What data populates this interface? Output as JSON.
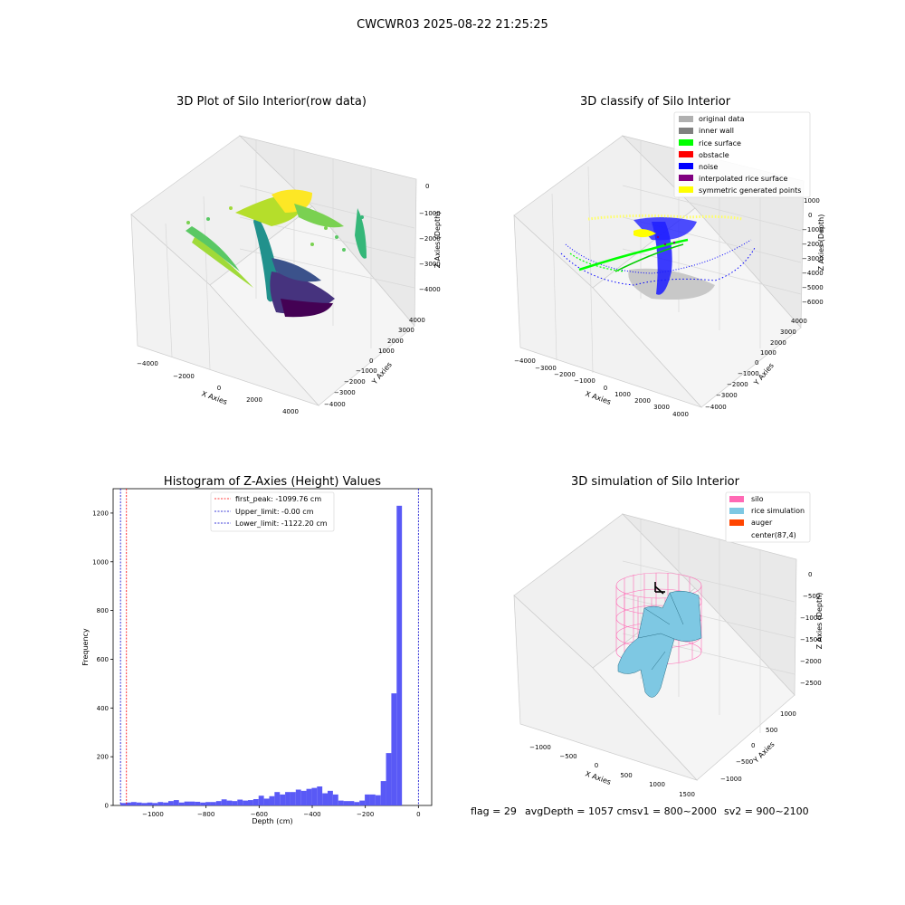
{
  "suptitle": "CWCWR03 2025-08-22 21:25:25",
  "footer": {
    "flag": "flag = 29",
    "avg": "avgDepth = 1057 cmsv1 = 800~2000",
    "sv2": "sv2 = 900~2100"
  },
  "colors": {
    "histogram_bar": "#5050f5",
    "first_peak": "#ff0000",
    "limits": "#0000cc",
    "original_data": "#b0b0b0",
    "inner_wall": "#808080",
    "rice_surface": "#00ff00",
    "obstacle": "#ff0000",
    "noise": "#0000ff",
    "interpolated": "#800080",
    "symmetric": "#ffff00",
    "silo": "#ff69b4",
    "rice_simulation": "#7ec8e3",
    "auger": "#ff4500"
  },
  "chart_data": [
    {
      "type": "scatter3d",
      "title": "3D Plot of Silo Interior(row data)",
      "xlabel": "X Axies",
      "ylabel": "Y Axies",
      "zlabel": "Z Axies (Depth)",
      "xticks": [
        "−4000",
        "−2000",
        "0",
        "2000",
        "4000"
      ],
      "yticks": [
        "4000",
        "3000",
        "2000",
        "1000",
        "0",
        "−1000",
        "−2000",
        "−3000",
        "−4000"
      ],
      "zticks": [
        "0",
        "−1000",
        "−2000",
        "−3000",
        "−4000"
      ],
      "colormap": "viridis"
    },
    {
      "type": "scatter3d",
      "title": "3D classify of Silo Interior",
      "xlabel": "X Axies",
      "ylabel": "Y Axies",
      "zlabel": "Z Axies (Depth)",
      "xticks": [
        "−4000",
        "−3000",
        "−2000",
        "−1000",
        "0",
        "1000",
        "2000",
        "3000",
        "4000"
      ],
      "yticks": [
        "4000",
        "3000",
        "2000",
        "1000",
        "0",
        "−1000",
        "−2000",
        "−3000",
        "−4000"
      ],
      "zticks": [
        "2000",
        "1000",
        "0",
        "−1000",
        "−2000",
        "−3000",
        "−4000",
        "−5000",
        "−6000"
      ],
      "legend": [
        {
          "label": "original data",
          "color": "#b0b0b0"
        },
        {
          "label": "inner wall",
          "color": "#808080"
        },
        {
          "label": "rice surface",
          "color": "#00ff00"
        },
        {
          "label": "obstacle",
          "color": "#ff0000"
        },
        {
          "label": "noise",
          "color": "#0000ff"
        },
        {
          "label": "interpolated rice surface",
          "color": "#800080"
        },
        {
          "label": "symmetric generated points",
          "color": "#ffff00"
        }
      ]
    },
    {
      "type": "histogram",
      "title": "Histogram of Z-Axies (Height) Values",
      "xlabel": "Depth (cm)",
      "ylabel": "Frequency",
      "xlim": [
        -1150,
        50
      ],
      "ylim": [
        0,
        1300
      ],
      "xticks": [
        -1000,
        -800,
        -600,
        -400,
        -200,
        0
      ],
      "xtick_labels": [
        "−1000",
        "−800",
        "−600",
        "−400",
        "−200",
        "0"
      ],
      "yticks": [
        0,
        200,
        400,
        600,
        800,
        1000,
        1200
      ],
      "bin_width": 20,
      "bins": [
        {
          "x0": -1122,
          "y": 10
        },
        {
          "x0": -1102,
          "y": 12
        },
        {
          "x0": -1082,
          "y": 14
        },
        {
          "x0": -1062,
          "y": 12
        },
        {
          "x0": -1042,
          "y": 10
        },
        {
          "x0": -1022,
          "y": 12
        },
        {
          "x0": -1002,
          "y": 10
        },
        {
          "x0": -982,
          "y": 14
        },
        {
          "x0": -962,
          "y": 12
        },
        {
          "x0": -942,
          "y": 18
        },
        {
          "x0": -922,
          "y": 22
        },
        {
          "x0": -902,
          "y": 12
        },
        {
          "x0": -882,
          "y": 16
        },
        {
          "x0": -862,
          "y": 16
        },
        {
          "x0": -842,
          "y": 15
        },
        {
          "x0": -822,
          "y": 12
        },
        {
          "x0": -802,
          "y": 14
        },
        {
          "x0": -782,
          "y": 14
        },
        {
          "x0": -762,
          "y": 18
        },
        {
          "x0": -742,
          "y": 25
        },
        {
          "x0": -722,
          "y": 20
        },
        {
          "x0": -702,
          "y": 18
        },
        {
          "x0": -682,
          "y": 24
        },
        {
          "x0": -662,
          "y": 20
        },
        {
          "x0": -642,
          "y": 22
        },
        {
          "x0": -622,
          "y": 26
        },
        {
          "x0": -602,
          "y": 40
        },
        {
          "x0": -582,
          "y": 28
        },
        {
          "x0": -562,
          "y": 38
        },
        {
          "x0": -542,
          "y": 55
        },
        {
          "x0": -522,
          "y": 45
        },
        {
          "x0": -502,
          "y": 55
        },
        {
          "x0": -482,
          "y": 55
        },
        {
          "x0": -462,
          "y": 65
        },
        {
          "x0": -442,
          "y": 60
        },
        {
          "x0": -422,
          "y": 68
        },
        {
          "x0": -402,
          "y": 72
        },
        {
          "x0": -382,
          "y": 78
        },
        {
          "x0": -362,
          "y": 50
        },
        {
          "x0": -342,
          "y": 60
        },
        {
          "x0": -322,
          "y": 45
        },
        {
          "x0": -302,
          "y": 20
        },
        {
          "x0": -282,
          "y": 18
        },
        {
          "x0": -262,
          "y": 18
        },
        {
          "x0": -242,
          "y": 14
        },
        {
          "x0": -222,
          "y": 20
        },
        {
          "x0": -202,
          "y": 45
        },
        {
          "x0": -182,
          "y": 45
        },
        {
          "x0": -162,
          "y": 42
        },
        {
          "x0": -142,
          "y": 100
        },
        {
          "x0": -122,
          "y": 215
        },
        {
          "x0": -102,
          "y": 460
        },
        {
          "x0": -82,
          "y": 1230
        },
        {
          "x0": -62,
          "y": 0
        },
        {
          "x0": -42,
          "y": 0
        },
        {
          "x0": -22,
          "y": 0
        }
      ],
      "lines": [
        {
          "name": "first_peak: -1099.76 cm",
          "x": -1099.76,
          "color": "#ff0000"
        },
        {
          "name": "Upper_limit: -0.00 cm",
          "x": 0.0,
          "color": "#0000cc"
        },
        {
          "name": "Lower_limit: -1122.20 cm",
          "x": -1122.2,
          "color": "#0000cc"
        }
      ]
    },
    {
      "type": "surface3d",
      "title": "3D simulation of Silo Interior",
      "xlabel": "X Axies",
      "ylabel": "Y Axies",
      "zlabel": "Z Axies (Depth)",
      "xticks": [
        "−1000",
        "−500",
        "0",
        "500",
        "1000",
        "1500"
      ],
      "yticks": [
        "1000",
        "500",
        "0",
        "−500",
        "−1000"
      ],
      "zticks": [
        "0",
        "−500",
        "−1000",
        "−1500",
        "−2000",
        "−2500"
      ],
      "legend": [
        {
          "label": "silo",
          "color": "#ff69b4"
        },
        {
          "label": "rice simulation",
          "color": "#7ec8e3"
        },
        {
          "label": "auger",
          "color": "#ff4500"
        },
        {
          "label": "center(87,4)",
          "color": "none"
        }
      ]
    }
  ]
}
